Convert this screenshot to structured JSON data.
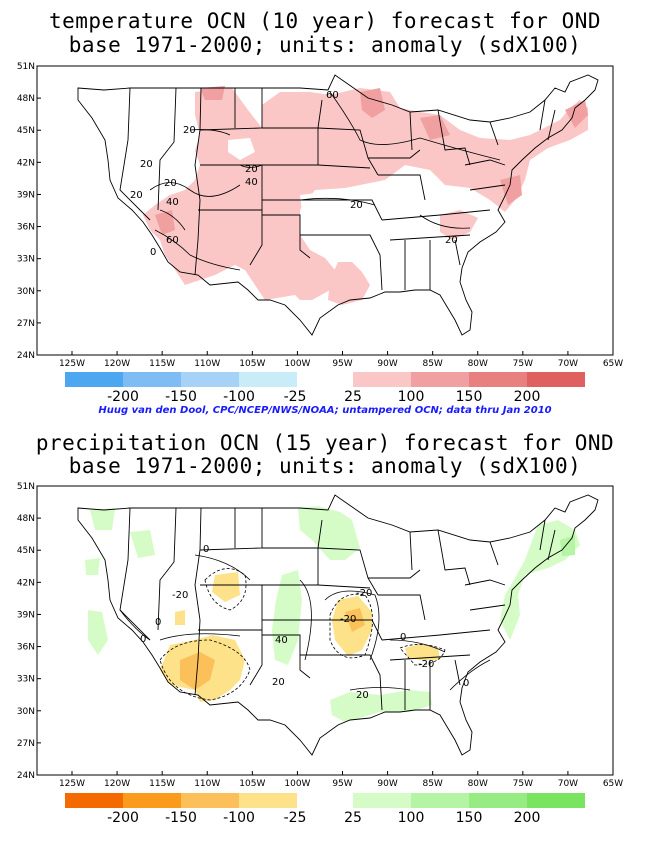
{
  "panels": [
    {
      "id": "temperature",
      "title_line1": "temperature OCN (10 year) forecast for OND",
      "title_line2": "base 1971-2000; units: anomaly (sdX100)",
      "contour_labels": [
        "60",
        "20",
        "20",
        "20",
        "20",
        "40",
        "20",
        "40",
        "60",
        "0",
        "20",
        "20"
      ],
      "legend": {
        "labels": [
          "-200",
          "-150",
          "-100",
          "-25",
          "25",
          "100",
          "150",
          "200"
        ],
        "colors": [
          "#4da6f0",
          "#7ebcf4",
          "#a6d2f7",
          "#c9ecf9",
          "#fbc6c6",
          "#f0a0a0",
          "#e88080",
          "#e06060"
        ]
      }
    },
    {
      "id": "precipitation",
      "title_line1": "precipitation OCN (15 year) forecast for OND",
      "title_line2": "base 1971-2000; units: anomaly (sdX100)",
      "contour_labels": [
        "0",
        "-20",
        "0",
        "0",
        "40",
        "20",
        "-20",
        "-20",
        "0",
        "-20",
        "20",
        "0"
      ],
      "legend": {
        "labels": [
          "-200",
          "-150",
          "-100",
          "-25",
          "25",
          "100",
          "150",
          "200"
        ],
        "colors": [
          "#f46a00",
          "#fb9b1e",
          "#fbc05a",
          "#fde28a",
          "#d5fcc6",
          "#b4f4a4",
          "#96ec82",
          "#78e460"
        ]
      }
    }
  ],
  "credit": "Huug van den Dool, CPC/NCEP/NWS/NOAA; untampered OCN; data thru Jan 2010",
  "axes": {
    "lat_labels": [
      "51N",
      "48N",
      "45N",
      "42N",
      "39N",
      "36N",
      "33N",
      "30N",
      "27N",
      "24N"
    ],
    "lon_labels": [
      "125W",
      "120W",
      "115W",
      "110W",
      "105W",
      "100W",
      "95W",
      "90W",
      "85W",
      "80W",
      "75W",
      "70W",
      "65W"
    ]
  }
}
